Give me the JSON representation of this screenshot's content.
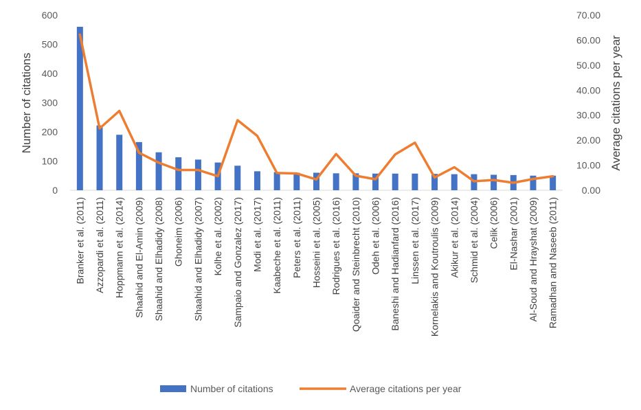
{
  "chart_data": {
    "type": "bar+line",
    "categories": [
      "Branker et al. (2011)",
      "Azzopardi et al. (2011)",
      "Hoppmann et al. (2014)",
      "Shaahid and El-Amin (2009)",
      "Shaahid and Elhadidy (2008)",
      "Ghoneim (2006)",
      "Shaahid and Elhadidy (2007)",
      "Kolhe et al. (2002)",
      "Sampaio and Gonzalez (2017)",
      "Modi et al. (2017)",
      "Kaabeche et al. (2011)",
      "Peters et al. (2011)",
      "Hosseini et al. (2005)",
      "Rodrigues et al. (2016)",
      "Qoaider and Steinbrecht (2010)",
      "Odeh et al. (2006)",
      "Baneshi and Hadianfard (2016)",
      "Linssen et al. (2017)",
      "Kornelakis and Koutroulis (2009)",
      "Akikur et al. (2014)",
      "Schmid et al. (2004)",
      "Celik (2006)",
      "El-Nashar (2001)",
      "Al-Soud and Hrayshat (2009)",
      "Ramadhan and Naseeb (2011)"
    ],
    "series": [
      {
        "name": "Number of citations",
        "kind": "bar",
        "axis": "left",
        "color": "#4472C4",
        "values": [
          560,
          222,
          190,
          165,
          130,
          113,
          105,
          95,
          84,
          65,
          62,
          60,
          60,
          58,
          58,
          57,
          57,
          57,
          56,
          55,
          55,
          53,
          52,
          50,
          50
        ]
      },
      {
        "name": "Average citations per year",
        "kind": "line",
        "axis": "right",
        "color": "#ED7D31",
        "values": [
          62.2,
          24.7,
          31.7,
          15.0,
          11.0,
          8.1,
          8.1,
          5.6,
          28.0,
          21.7,
          6.9,
          6.7,
          4.3,
          14.5,
          5.8,
          4.4,
          14.3,
          19.0,
          5.1,
          9.2,
          3.6,
          4.1,
          3.0,
          4.5,
          5.6
        ]
      }
    ],
    "ylabel": "Number of citations",
    "ylim": [
      0,
      600
    ],
    "yticks": [
      "0",
      "100",
      "200",
      "300",
      "400",
      "500",
      "600"
    ],
    "y2label": "Average citations per year",
    "y2lim": [
      0,
      70
    ],
    "y2ticks": [
      "0.00",
      "10.00",
      "20.00",
      "30.00",
      "40.00",
      "50.00",
      "60.00",
      "70.00"
    ],
    "grid": false,
    "legend_position": "bottom"
  }
}
